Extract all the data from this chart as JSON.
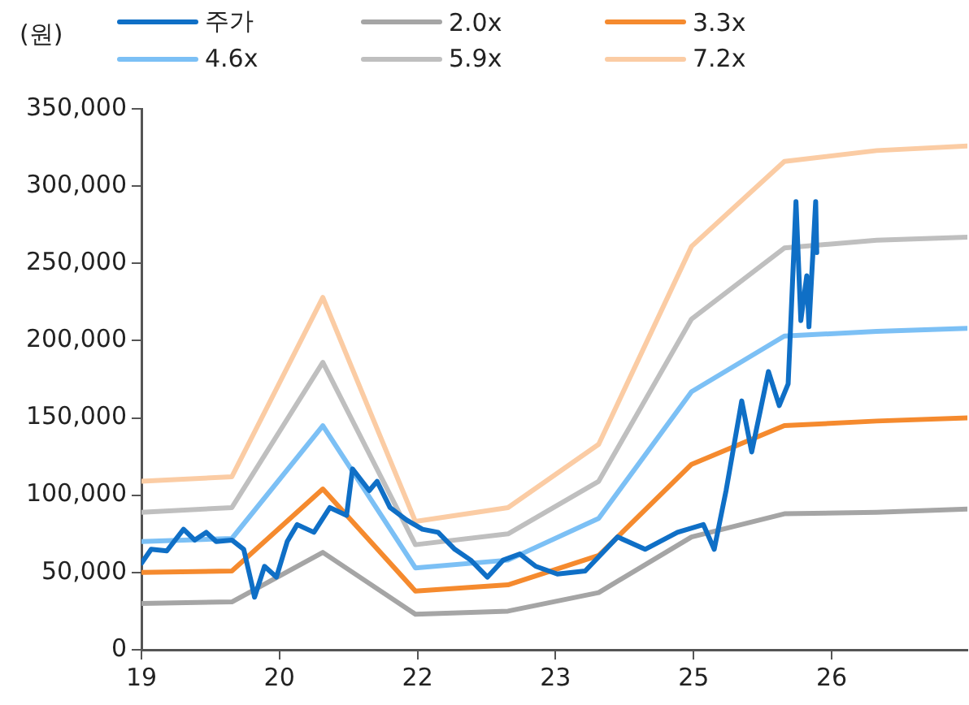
{
  "chart_data": {
    "type": "line",
    "ylabel": "(원)",
    "legend": "top",
    "grid": false,
    "marker": "none",
    "line_style": "solid",
    "xlim": [
      "2019-07-02",
      "2027-11-17"
    ],
    "xticks": [
      {
        "value": "2019-07-02",
        "label": "19"
      },
      {
        "value": "2020-11-24",
        "label": "20"
      },
      {
        "value": "2022-04-20",
        "label": "22"
      },
      {
        "value": "2023-09-13",
        "label": "23"
      },
      {
        "value": "2025-02-06",
        "label": "25"
      },
      {
        "value": "2026-07-02",
        "label": "26"
      }
    ],
    "ylim": [
      0,
      350000
    ],
    "yticks": [
      0,
      {
        "value": 50000,
        "label": "50,000"
      },
      {
        "value": 100000,
        "label": "100,000"
      },
      {
        "value": 150000,
        "label": "150,000"
      },
      {
        "value": 200000,
        "label": "200,000"
      },
      {
        "value": 250000,
        "label": "250,000"
      },
      {
        "value": 300000,
        "label": "300,000"
      },
      {
        "value": 350000,
        "label": "350,000"
      }
    ],
    "series": [
      {
        "name": "주가",
        "color": "#0f6fc6",
        "x": [
          "2019-07-02",
          "2019-08-07",
          "2019-10-04",
          "2019-12-05",
          "2020-01-15",
          "2020-02-27",
          "2020-04-04",
          "2020-06-01",
          "2020-07-15",
          "2020-08-13",
          "2020-08-24",
          "2020-09-30",
          "2020-11-13",
          "2020-12-23",
          "2021-01-29",
          "2021-04-01",
          "2021-05-30",
          "2021-07-31",
          "2021-08-22",
          "2021-10-23",
          "2021-11-21",
          "2022-01-08",
          "2022-03-10",
          "2022-05-08",
          "2022-07-05",
          "2022-09-05",
          "2022-11-03",
          "2023-01-04",
          "2023-03-03",
          "2023-05-04",
          "2023-07-02",
          "2023-09-20",
          "2024-01-01",
          "2024-04-30",
          "2024-08-10",
          "2024-12-08",
          "2025-03-14",
          "2025-04-23",
          "2025-06-06",
          "2025-08-03",
          "2025-09-09",
          "2025-11-10",
          "2025-12-20",
          "2026-01-22",
          "2026-02-20",
          "2026-03-10",
          "2026-04-01",
          "2026-04-09",
          "2026-05-04",
          "2026-05-08"
        ],
        "values": [
          56000,
          65000,
          64000,
          78000,
          71000,
          76000,
          70000,
          71000,
          65000,
          43000,
          34000,
          54000,
          47000,
          70000,
          81000,
          76000,
          92000,
          87000,
          117000,
          103000,
          109000,
          92000,
          84000,
          78000,
          76000,
          65000,
          58000,
          47000,
          58000,
          62000,
          54000,
          49000,
          51000,
          73000,
          65000,
          76000,
          81000,
          65000,
          103000,
          161000,
          128000,
          180000,
          158000,
          172000,
          290000,
          213000,
          242000,
          209000,
          290000,
          257000
        ]
      },
      {
        "name": "2.0x",
        "color": "#a5a5a5",
        "x": [
          "2019-07-02",
          "2020-06-01",
          "2021-05-04",
          "2022-04-12",
          "2023-03-21",
          "2024-02-20",
          "2025-01-29",
          "2026-01-08",
          "2026-12-16",
          "2027-11-17"
        ],
        "values": [
          30000,
          31000,
          63000,
          23000,
          25000,
          37000,
          73000,
          88000,
          89000,
          91000
        ]
      },
      {
        "name": "3.3x",
        "color": "#f58a2e",
        "x": [
          "2019-07-02",
          "2020-06-01",
          "2021-05-04",
          "2022-04-12",
          "2023-03-21",
          "2024-02-20",
          "2025-01-29",
          "2026-01-08",
          "2026-12-16",
          "2027-11-17"
        ],
        "values": [
          50000,
          51000,
          104000,
          38000,
          42000,
          61000,
          120000,
          145000,
          148000,
          150000
        ]
      },
      {
        "name": "4.6x",
        "color": "#7cc0f5",
        "x": [
          "2019-07-02",
          "2020-06-01",
          "2021-05-04",
          "2022-04-12",
          "2023-03-21",
          "2024-02-20",
          "2025-01-29",
          "2026-01-08",
          "2026-12-16",
          "2027-11-17"
        ],
        "values": [
          70000,
          72000,
          145000,
          53000,
          58000,
          85000,
          167000,
          203000,
          206000,
          208000
        ]
      },
      {
        "name": "5.9x",
        "color": "#bfbfbf",
        "x": [
          "2019-07-02",
          "2020-06-01",
          "2021-05-04",
          "2022-04-12",
          "2023-03-21",
          "2024-02-20",
          "2025-01-29",
          "2026-01-08",
          "2026-12-16",
          "2027-11-17"
        ],
        "values": [
          89000,
          92000,
          186000,
          68000,
          75000,
          109000,
          214000,
          260000,
          265000,
          267000
        ]
      },
      {
        "name": "7.2x",
        "color": "#fbcca4",
        "x": [
          "2019-07-02",
          "2020-06-01",
          "2021-05-04",
          "2022-04-12",
          "2023-03-21",
          "2024-02-20",
          "2025-01-29",
          "2026-01-08",
          "2026-12-16",
          "2027-11-17"
        ],
        "values": [
          109000,
          112000,
          228000,
          83000,
          92000,
          133000,
          261000,
          316000,
          323000,
          326000
        ]
      }
    ]
  }
}
